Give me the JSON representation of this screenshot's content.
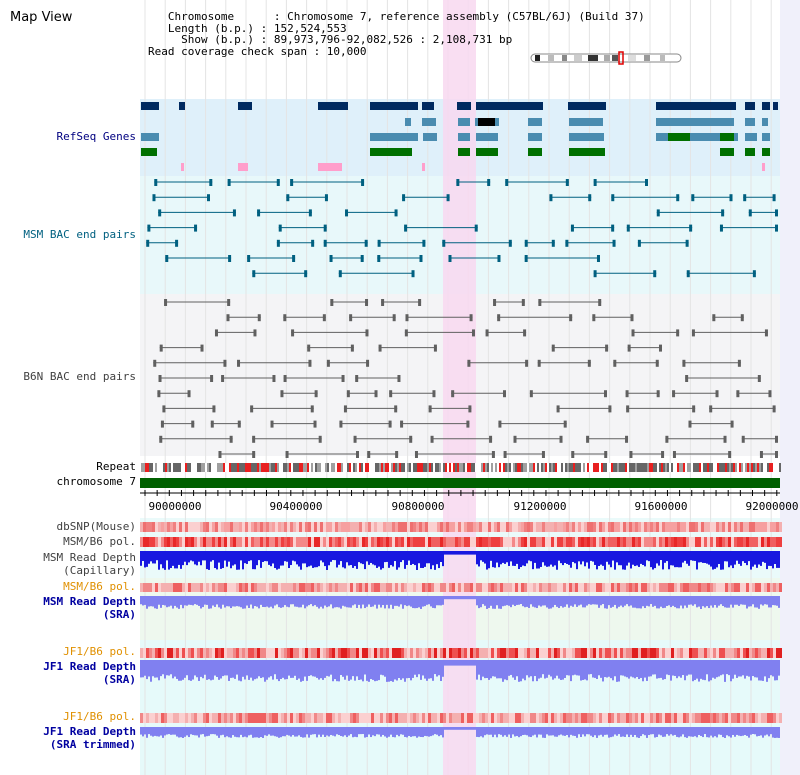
{
  "page_title": "Map View",
  "header": {
    "chromosome_line": "   Chromosome      : Chromosome 7, reference assembly (C57BL/6J) (Build 37)",
    "length_line": "   Length (b.p.) : 152,524,553",
    "show_line": "     Show (b.p.) : 89,973,796-92,082,526 : 2,108,731 bp",
    "coverage_line": "Read coverage check span : 10,000"
  },
  "tracks": {
    "refseq": "RefSeq Genes",
    "msm_bac": "MSM BAC end pairs",
    "b6n_bac": "B6N BAC end pairs",
    "repeat": "Repeat",
    "chromosome": "chromosome 7",
    "dbsnp": "dbSNP(Mouse)",
    "msm_b6_pol_1": "MSM/B6 pol.",
    "msm_read_depth_cap_1": "MSM Read Depth",
    "msm_read_depth_cap_2": "(Capillary)",
    "msm_b6_pol_2": "MSM/B6 pol.",
    "msm_read_depth_sra_1": "MSM Read Depth",
    "msm_read_depth_sra_2": "(SRA)",
    "jf1_b6_pol_1": "JF1/B6 pol.",
    "jf1_read_depth_sra_1": "JF1 Read Depth",
    "jf1_read_depth_sra_2": "(SRA)",
    "jf1_b6_pol_2": "JF1/B6 pol.",
    "jf1_read_depth_trim_1": "JF1 Read Depth",
    "jf1_read_depth_trim_2": "(SRA trimmed)"
  },
  "axis_ticks": [
    "90000000",
    "90400000",
    "90800000",
    "91200000",
    "91600000",
    "92000000"
  ],
  "colors": {
    "refseq_bg": "#dff0fa",
    "bac_bg": "#e8f8fa",
    "highlight": "#f8d8f0",
    "chromosome_bar": "#006000",
    "gene_dark": "#002a60",
    "gene_mid": "#4a8cb0",
    "gene_green": "#007000",
    "bac_msm": "#006080",
    "bac_b6n": "#606060"
  }
}
